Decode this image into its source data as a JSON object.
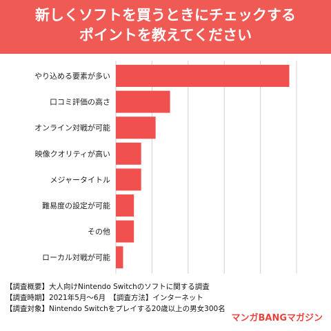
{
  "title_lines": [
    "新しくソフトを買うときにチェックする",
    "ポイントを教えてください"
  ],
  "colors": {
    "banner": "#f05a55",
    "bar": "#f0514f",
    "grid": "#d0d0d0",
    "brand": "#e8443f"
  },
  "chart_data": {
    "type": "bar",
    "orientation": "horizontal",
    "title": "新しくソフトを買うときにチェックするポイントを教えてください",
    "categories": [
      "やり込める要素が多い",
      "口コミ評価の高さ",
      "オンライン対戦が可能",
      "映像クオリティが高い",
      "メジャータイトル",
      "難易度の設定が可能",
      "その他",
      "ローカル対戦が可能"
    ],
    "values": [
      48,
      15,
      11,
      7,
      7,
      5,
      5,
      2
    ],
    "xlim": [
      0,
      50
    ],
    "xticks": [
      "0",
      "10",
      "20",
      "30",
      "40",
      "50"
    ],
    "grid": true,
    "xlabel": "",
    "ylabel": ""
  },
  "footer_lines": [
    "【調査概要】大人向けNintendo Switchのソフトに関する調査",
    "【調査時期】2021年5月～6月　【調査方法】インターネット",
    "【調査対象】Nintendo Switchをプレイする20歳以上の男女300名"
  ],
  "brand": "マンガBANGマガジン"
}
